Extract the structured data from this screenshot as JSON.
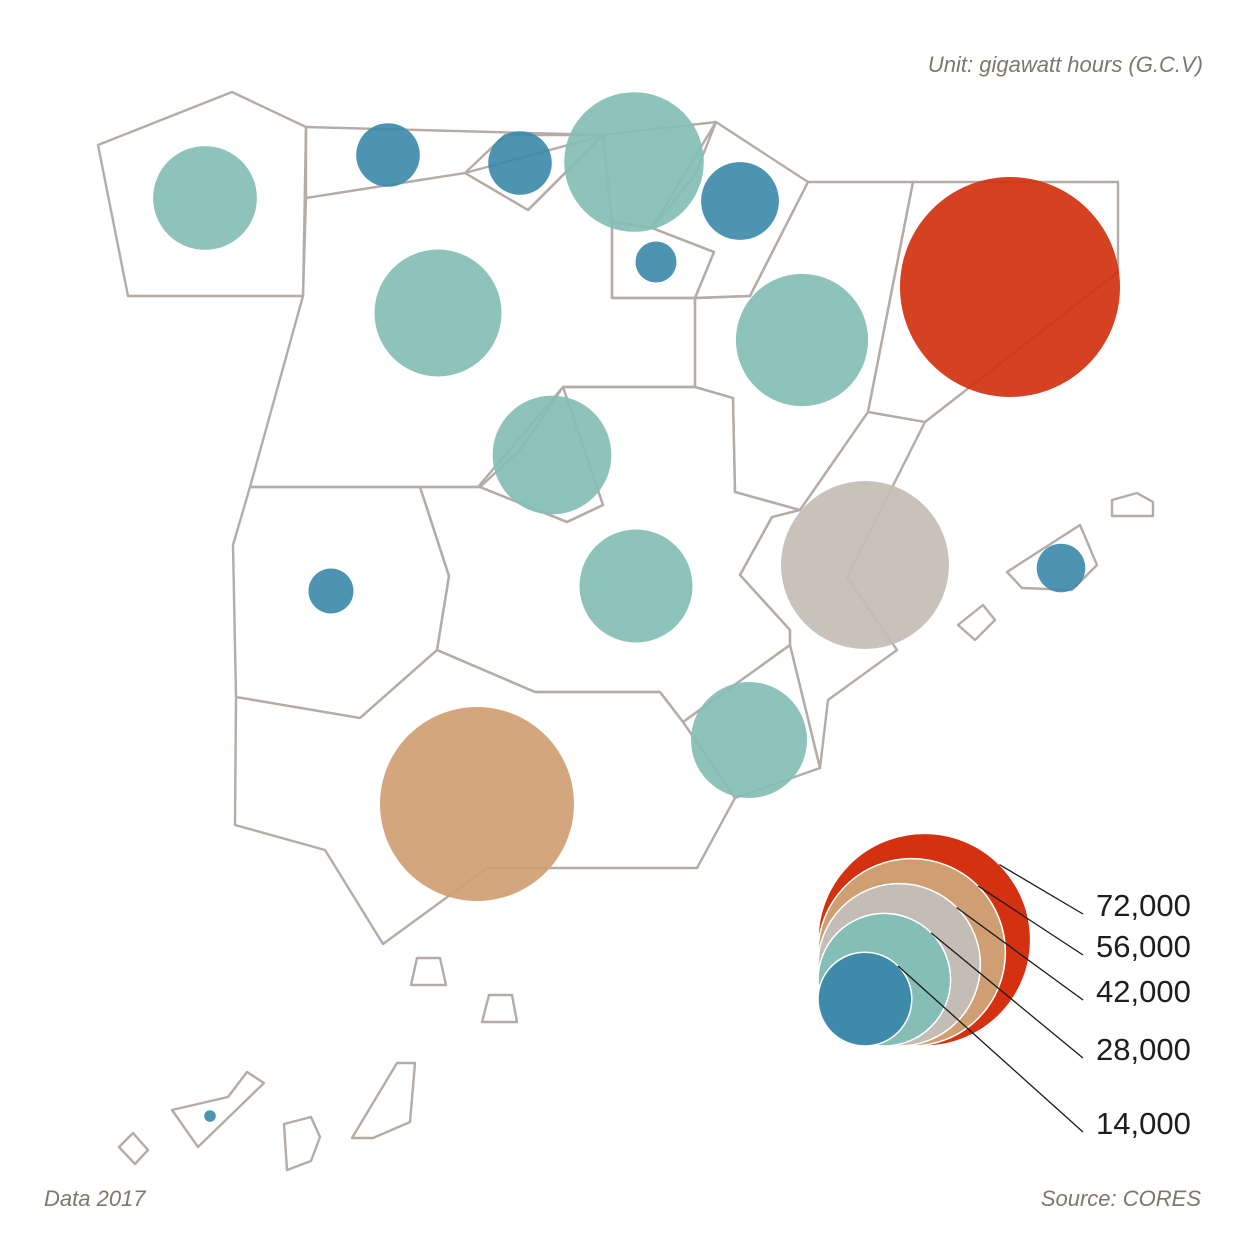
{
  "notes": {
    "unit": "Unit: gigawatt hours (G.C.V)",
    "data_year": "Data 2017",
    "source": "Source: CORES"
  },
  "legend": {
    "items": [
      {
        "label": "72,000",
        "value": 72000,
        "color": "#d3310f"
      },
      {
        "label": "56,000",
        "value": 56000,
        "color": "#cf9e72"
      },
      {
        "label": "42,000",
        "value": 42000,
        "color": "#c4bdb5"
      },
      {
        "label": "28,000",
        "value": 28000,
        "color": "#84beb6"
      },
      {
        "label": "14,000",
        "value": 14000,
        "color": "#3e8aab"
      }
    ]
  },
  "colors": {
    "region_outline": "#b5aca6",
    "very_high": "#d3310f",
    "high": "#cf9e72",
    "medium_high": "#c4bdb5",
    "medium": "#84beb6",
    "low": "#3e8aab",
    "note_text": "#7d7868"
  },
  "map_data": {
    "type": "proportional-symbol-map",
    "region_count": 17,
    "bubble_values": [
      {
        "value": 72000,
        "class": "very_high"
      },
      {
        "value": 56000,
        "class": "high"
      },
      {
        "value": 42000,
        "class": "medium_high"
      },
      {
        "value": 29000,
        "class": "medium"
      },
      {
        "value": 26000,
        "class": "medium"
      },
      {
        "value": 24000,
        "class": "medium"
      },
      {
        "value": 21000,
        "class": "medium"
      },
      {
        "value": 20000,
        "class": "medium"
      },
      {
        "value": 19000,
        "class": "medium"
      },
      {
        "value": 16000,
        "class": "medium"
      },
      {
        "value": 9000,
        "class": "low"
      },
      {
        "value": 6000,
        "class": "low"
      },
      {
        "value": 6000,
        "class": "low"
      },
      {
        "value": 3500,
        "class": "low"
      },
      {
        "value": 3000,
        "class": "low"
      },
      {
        "value": 2500,
        "class": "low"
      },
      {
        "value": 200,
        "class": "low"
      }
    ]
  }
}
